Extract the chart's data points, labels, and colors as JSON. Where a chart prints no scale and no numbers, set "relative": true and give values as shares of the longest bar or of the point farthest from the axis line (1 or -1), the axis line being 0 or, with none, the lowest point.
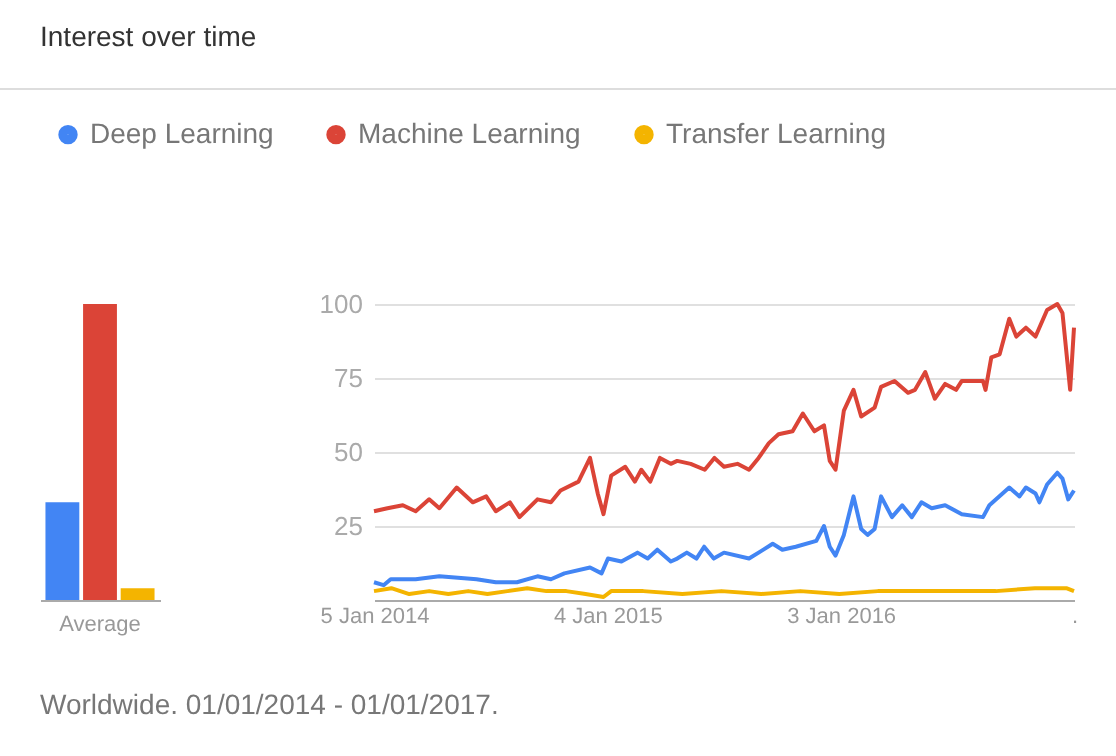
{
  "chart_data": [
    {
      "type": "bar",
      "title": "Interest over time",
      "categories": [
        "Average"
      ],
      "relative": true,
      "series": [
        {
          "color": "#4285f4",
          "values": [
            0.33
          ]
        },
        {
          "color": "#db4437",
          "values": [
            1
          ]
        },
        {
          "color": "#f4b400",
          "values": [
            0.04
          ]
        }
      ]
    },
    {
      "type": "line",
      "legend": "top left",
      "grid": "y",
      "ylim": [
        0,
        100
      ],
      "yticks": [
        25,
        50,
        75,
        100
      ],
      "xlim": [
        "2014-01-05",
        "2017-01-01"
      ],
      "xticks": [
        {
          "value": "2014-01-05",
          "label": "5 Jan 2014"
        },
        {
          "value": "2015-01-04",
          "label": "4 Jan 2015"
        },
        {
          "value": "2016-01-03",
          "label": "3 Jan 2016"
        },
        {
          "value": "2017-01-01",
          "label": "."
        }
      ],
      "annotations": [
        "Worldwide. 01/01/2014 - 01/01/2017."
      ],
      "series": [
        {
          "name": "Deep Learning",
          "color": "#4285f4",
          "x": [
            "2014-01-05",
            "2014-01-20",
            "2014-01-31",
            "2014-03-11",
            "2014-04-17",
            "2014-06-14",
            "2014-07-14",
            "2014-08-16",
            "2014-09-17",
            "2014-10-08",
            "2014-10-29",
            "2014-12-08",
            "2014-12-26",
            "2015-01-05",
            "2015-01-26",
            "2015-02-20",
            "2015-03-08",
            "2015-03-23",
            "2015-04-13",
            "2015-04-23",
            "2015-05-08",
            "2015-05-23",
            "2015-06-04",
            "2015-06-19",
            "2015-07-05",
            "2015-08-13",
            "2015-08-28",
            "2015-09-19",
            "2015-10-04",
            "2015-10-25",
            "2015-11-26",
            "2015-12-08",
            "2015-12-17",
            "2015-12-26",
            "2016-01-08",
            "2016-01-23",
            "2016-02-04",
            "2016-02-14",
            "2016-02-25",
            "2016-03-06",
            "2016-03-23",
            "2016-04-08",
            "2016-04-23",
            "2016-05-08",
            "2016-05-24",
            "2016-06-14",
            "2016-07-10",
            "2016-08-12",
            "2016-08-22",
            "2016-09-22",
            "2016-10-08",
            "2016-10-18",
            "2016-11-02",
            "2016-11-08",
            "2016-11-20",
            "2016-12-06",
            "2016-12-14",
            "2016-12-23",
            "2017-01-01"
          ],
          "values": [
            6,
            5,
            7,
            7,
            8,
            7,
            6,
            6,
            8,
            7,
            9,
            11,
            9,
            14,
            13,
            16,
            14,
            17,
            13,
            14,
            16,
            14,
            18,
            14,
            16,
            14,
            16,
            19,
            17,
            18,
            20,
            25,
            18,
            15,
            22,
            35,
            24,
            22,
            24,
            35,
            28,
            32,
            28,
            33,
            31,
            32,
            29,
            28,
            32,
            38,
            35,
            38,
            36,
            33,
            39,
            43,
            41,
            34,
            37
          ]
        },
        {
          "name": "Machine Learning",
          "color": "#db4437",
          "x": [
            "2014-01-05",
            "2014-01-26",
            "2014-02-19",
            "2014-03-11",
            "2014-04-01",
            "2014-04-17",
            "2014-05-14",
            "2014-06-08",
            "2014-06-29",
            "2014-07-14",
            "2014-08-05",
            "2014-08-20",
            "2014-09-17",
            "2014-10-08",
            "2014-10-23",
            "2014-11-20",
            "2014-12-08",
            "2014-12-20",
            "2014-12-29",
            "2015-01-10",
            "2015-02-01",
            "2015-02-16",
            "2015-02-26",
            "2015-03-12",
            "2015-03-27",
            "2015-04-13",
            "2015-04-23",
            "2015-05-14",
            "2015-06-05",
            "2015-06-20",
            "2015-07-05",
            "2015-07-26",
            "2015-08-13",
            "2015-08-28",
            "2015-09-13",
            "2015-09-28",
            "2015-10-20",
            "2015-11-05",
            "2015-11-23",
            "2015-12-08",
            "2015-12-17",
            "2015-12-26",
            "2016-01-08",
            "2016-01-23",
            "2016-02-04",
            "2016-02-25",
            "2016-03-06",
            "2016-03-27",
            "2016-04-17",
            "2016-04-28",
            "2016-05-14",
            "2016-05-29",
            "2016-06-14",
            "2016-07-01",
            "2016-07-10",
            "2016-08-12",
            "2016-08-16",
            "2016-08-25",
            "2016-09-07",
            "2016-09-22",
            "2016-10-03",
            "2016-10-18",
            "2016-11-02",
            "2016-11-20",
            "2016-12-06",
            "2016-12-14",
            "2016-12-26",
            "2017-01-01"
          ],
          "values": [
            30,
            31,
            32,
            30,
            34,
            31,
            38,
            33,
            35,
            30,
            33,
            28,
            34,
            33,
            37,
            40,
            48,
            36,
            29,
            42,
            45,
            40,
            44,
            40,
            48,
            46,
            47,
            46,
            44,
            48,
            45,
            46,
            44,
            48,
            53,
            56,
            57,
            63,
            57,
            59,
            47,
            44,
            64,
            71,
            62,
            65,
            72,
            74,
            70,
            71,
            77,
            68,
            73,
            71,
            74,
            74,
            71,
            82,
            83,
            95,
            89,
            92,
            89,
            98,
            100,
            97,
            71,
            92
          ]
        },
        {
          "name": "Transfer Learning",
          "color": "#f4b400",
          "x": [
            "2014-01-05",
            "2014-02-01",
            "2014-03-01",
            "2014-04-01",
            "2014-05-01",
            "2014-06-01",
            "2014-07-01",
            "2014-08-01",
            "2014-09-01",
            "2014-10-01",
            "2014-11-01",
            "2014-12-01",
            "2014-12-29",
            "2015-01-10",
            "2015-03-01",
            "2015-05-01",
            "2015-07-01",
            "2015-09-01",
            "2015-11-01",
            "2016-01-01",
            "2016-03-01",
            "2016-05-01",
            "2016-07-01",
            "2016-09-01",
            "2016-11-01",
            "2016-12-20",
            "2017-01-01"
          ],
          "values": [
            3,
            4,
            2,
            3,
            2,
            3,
            2,
            3,
            4,
            3,
            3,
            2,
            1,
            3,
            3,
            2,
            3,
            2,
            3,
            2,
            3,
            3,
            3,
            3,
            4,
            4,
            3
          ]
        }
      ]
    }
  ]
}
